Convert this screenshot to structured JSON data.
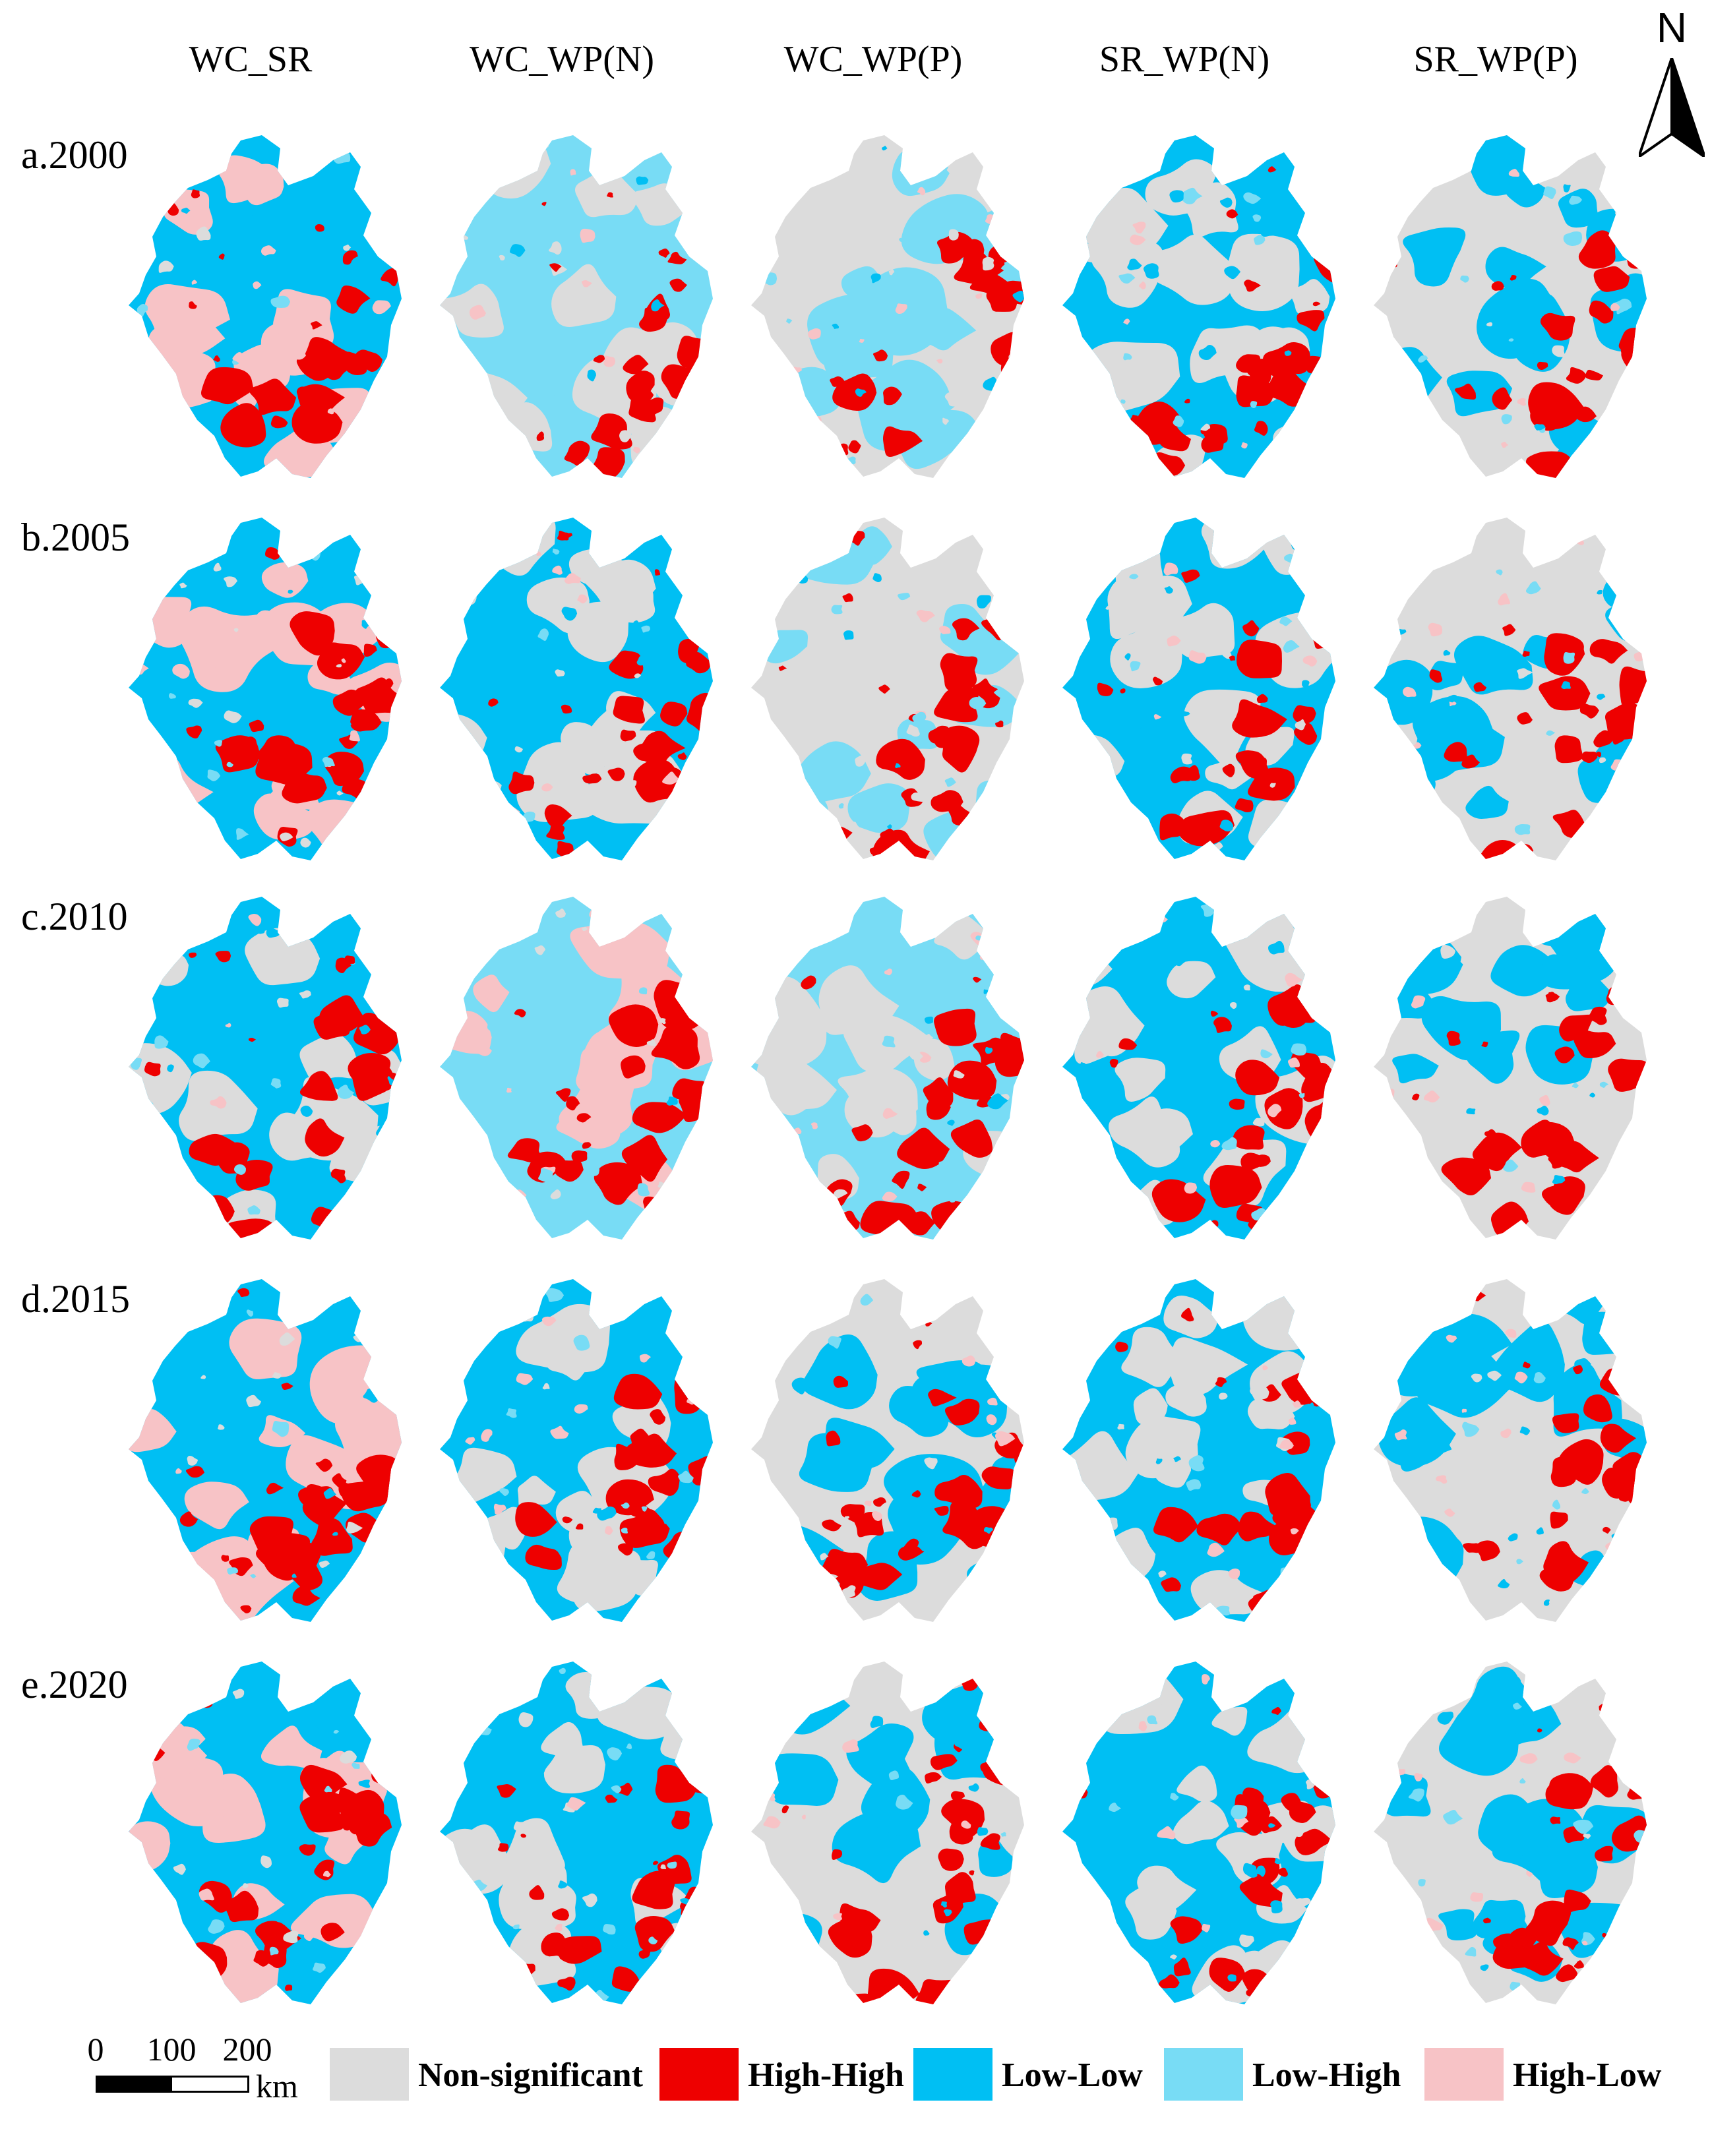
{
  "columns": [
    "WC_SR",
    "WC_WP(N)",
    "WC_WP(P)",
    "SR_WP(N)",
    "SR_WP(P)"
  ],
  "rows": [
    "a.2000",
    "b.2005",
    "c.2010",
    "d.2015",
    "e.2020"
  ],
  "north_arrow": {
    "label": "N"
  },
  "scale_bar": {
    "ticks": [
      "0",
      "100",
      "200"
    ],
    "unit": "km"
  },
  "legend": [
    {
      "label": "Non-significant",
      "color": "#dcdcdc"
    },
    {
      "label": "High-High",
      "color": "#ee0000"
    },
    {
      "label": "Low-Low",
      "color": "#00bff3"
    },
    {
      "label": "Low-High",
      "color": "#78dcf5"
    },
    {
      "label": "High-Low",
      "color": "#f7c3c6"
    }
  ],
  "maps": [
    {
      "column": "WC_SR",
      "row": "a.2000",
      "dominant": [
        "Low-Low",
        "High-Low",
        "High-High"
      ]
    },
    {
      "column": "WC_WP(N)",
      "row": "a.2000",
      "dominant": [
        "Low-High",
        "Non-significant",
        "High-High"
      ]
    },
    {
      "column": "WC_WP(P)",
      "row": "a.2000",
      "dominant": [
        "Non-significant",
        "Low-High",
        "High-High"
      ]
    },
    {
      "column": "SR_WP(N)",
      "row": "a.2000",
      "dominant": [
        "Low-Low",
        "Non-significant",
        "High-High"
      ]
    },
    {
      "column": "SR_WP(P)",
      "row": "a.2000",
      "dominant": [
        "Non-significant",
        "Low-Low",
        "High-High"
      ]
    },
    {
      "column": "WC_SR",
      "row": "b.2005",
      "dominant": [
        "Low-Low",
        "High-Low",
        "High-High"
      ]
    },
    {
      "column": "WC_WP(N)",
      "row": "b.2005",
      "dominant": [
        "Low-Low",
        "Non-significant",
        "High-High"
      ]
    },
    {
      "column": "WC_WP(P)",
      "row": "b.2005",
      "dominant": [
        "Non-significant",
        "Low-High",
        "High-High"
      ]
    },
    {
      "column": "SR_WP(N)",
      "row": "b.2005",
      "dominant": [
        "Low-Low",
        "Non-significant",
        "High-High"
      ]
    },
    {
      "column": "SR_WP(P)",
      "row": "b.2005",
      "dominant": [
        "Non-significant",
        "Low-Low",
        "High-High"
      ]
    },
    {
      "column": "WC_SR",
      "row": "c.2010",
      "dominant": [
        "Low-Low",
        "Non-significant",
        "High-High"
      ]
    },
    {
      "column": "WC_WP(N)",
      "row": "c.2010",
      "dominant": [
        "Low-High",
        "High-Low",
        "High-High"
      ]
    },
    {
      "column": "WC_WP(P)",
      "row": "c.2010",
      "dominant": [
        "Low-High",
        "Non-significant",
        "High-High"
      ]
    },
    {
      "column": "SR_WP(N)",
      "row": "c.2010",
      "dominant": [
        "Low-Low",
        "Non-significant",
        "High-High"
      ]
    },
    {
      "column": "SR_WP(P)",
      "row": "c.2010",
      "dominant": [
        "Non-significant",
        "Low-Low",
        "High-High"
      ]
    },
    {
      "column": "WC_SR",
      "row": "d.2015",
      "dominant": [
        "Low-Low",
        "High-Low",
        "High-High"
      ]
    },
    {
      "column": "WC_WP(N)",
      "row": "d.2015",
      "dominant": [
        "Low-Low",
        "Non-significant",
        "High-High"
      ]
    },
    {
      "column": "WC_WP(P)",
      "row": "d.2015",
      "dominant": [
        "Non-significant",
        "Low-Low",
        "High-High"
      ]
    },
    {
      "column": "SR_WP(N)",
      "row": "d.2015",
      "dominant": [
        "Low-Low",
        "Non-significant",
        "High-High"
      ]
    },
    {
      "column": "SR_WP(P)",
      "row": "d.2015",
      "dominant": [
        "Non-significant",
        "Low-Low",
        "High-High"
      ]
    },
    {
      "column": "WC_SR",
      "row": "e.2020",
      "dominant": [
        "Low-Low",
        "High-Low",
        "High-High"
      ]
    },
    {
      "column": "WC_WP(N)",
      "row": "e.2020",
      "dominant": [
        "Low-Low",
        "Non-significant",
        "High-High"
      ]
    },
    {
      "column": "WC_WP(P)",
      "row": "e.2020",
      "dominant": [
        "Non-significant",
        "Low-Low",
        "High-High"
      ]
    },
    {
      "column": "SR_WP(N)",
      "row": "e.2020",
      "dominant": [
        "Low-Low",
        "Non-significant",
        "High-High"
      ]
    },
    {
      "column": "SR_WP(P)",
      "row": "e.2020",
      "dominant": [
        "Non-significant",
        "Low-Low",
        "High-High"
      ]
    }
  ]
}
